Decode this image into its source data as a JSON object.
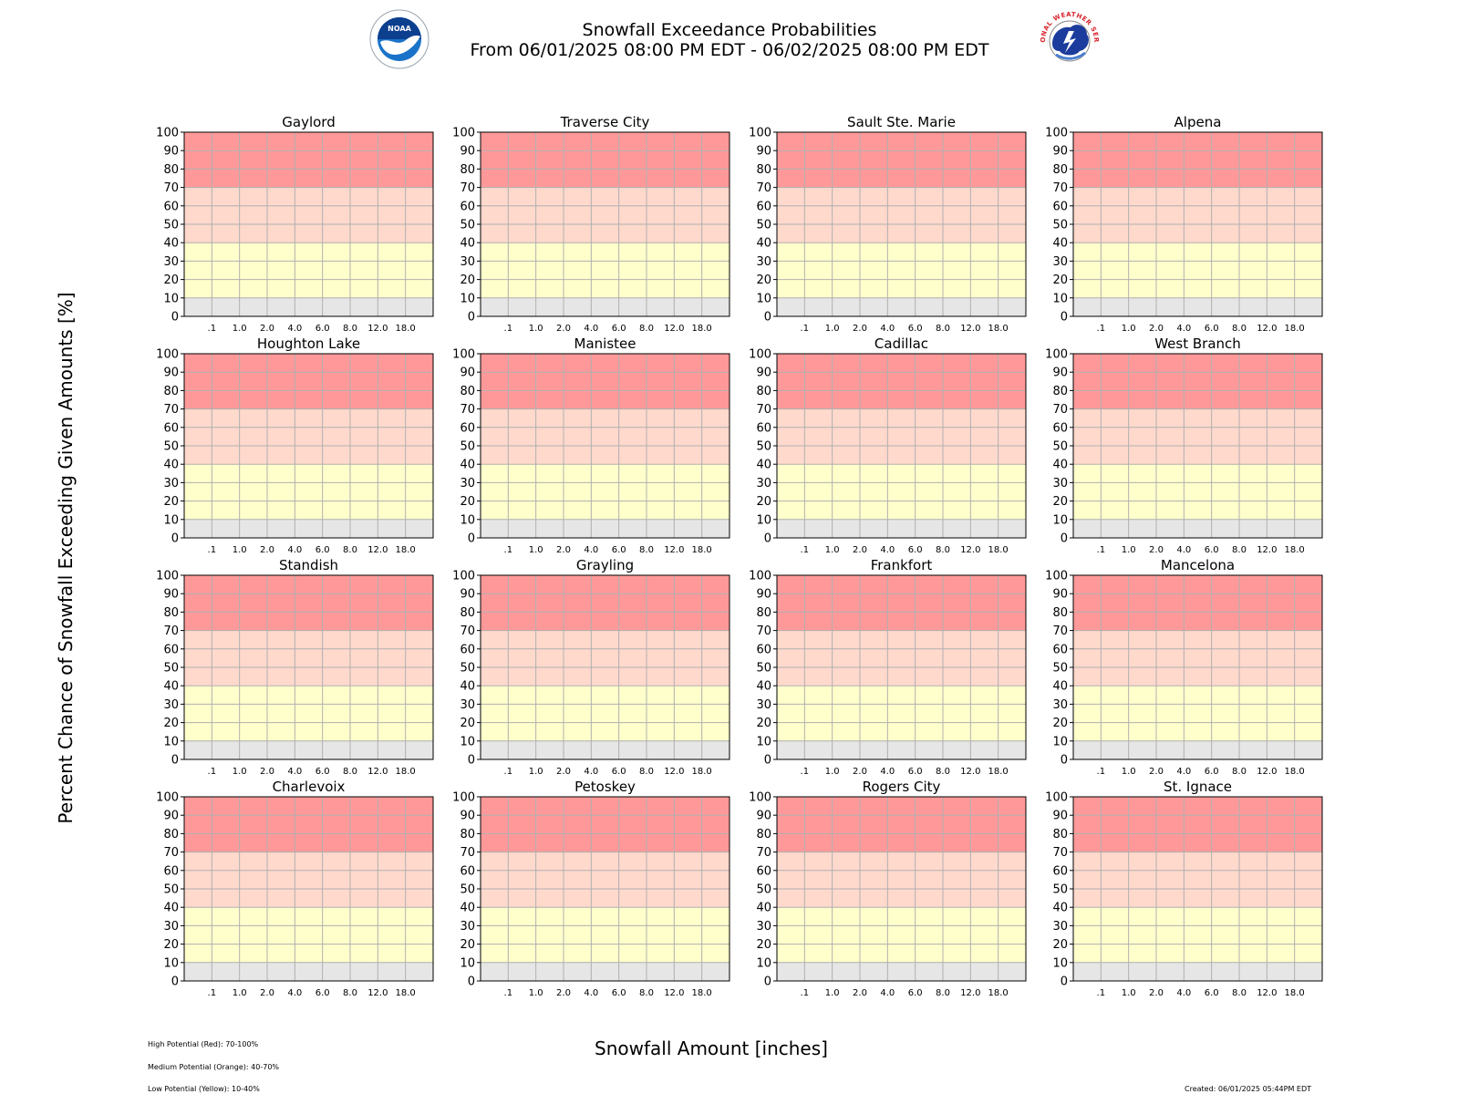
{
  "header": {
    "title": "Snowfall Exceedance Probabilities",
    "subtitle": "From 06/01/2025 08:00 PM EDT - 06/02/2025 08:00 PM EDT",
    "noaa_logo_text": "NOAA",
    "nws_logo_text": "NATIONAL WEATHER SERVICE"
  },
  "footer": {
    "legend_high": "High Potential (Red): 70-100%",
    "legend_medium": "Medium Potential (Orange): 40-70%",
    "legend_low": "Low Potential (Yellow): 10-40%",
    "created": "Created: 06/01/2025 05:44PM EDT"
  },
  "colors": {
    "high": "#ff9999",
    "medium": "#ffd9cc",
    "low": "#ffffcc",
    "minimal": "#e6e6e6",
    "grid": "#b0b0b0",
    "noaa_blue": "#1a73c9",
    "nws_red": "#d8232a"
  },
  "chart_data": {
    "type": "line",
    "xlabel": "Snowfall Amount [inches]",
    "ylabel": "Percent Chance of Snowfall Exceeding Given Amounts [%]",
    "ylim": [
      0,
      100
    ],
    "yticks": [
      "0",
      "10",
      "20",
      "30",
      "40",
      "50",
      "60",
      "70",
      "80",
      "90",
      "100"
    ],
    "xticks": [
      ".1",
      "1.0",
      "2.0",
      "4.0",
      "6.0",
      "8.0",
      "12.0",
      "18.0"
    ],
    "grid": true,
    "bands": [
      {
        "from": 70,
        "to": 100,
        "color": "#ff9999"
      },
      {
        "from": 40,
        "to": 70,
        "color": "#ffd9cc"
      },
      {
        "from": 10,
        "to": 40,
        "color": "#ffffcc"
      },
      {
        "from": 0,
        "to": 10,
        "color": "#e6e6e6"
      }
    ],
    "panels": [
      {
        "title": "Gaylord",
        "values": []
      },
      {
        "title": "Traverse City",
        "values": []
      },
      {
        "title": "Sault Ste. Marie",
        "values": []
      },
      {
        "title": "Alpena",
        "values": []
      },
      {
        "title": "Houghton Lake",
        "values": []
      },
      {
        "title": "Manistee",
        "values": []
      },
      {
        "title": "Cadillac",
        "values": []
      },
      {
        "title": "West Branch",
        "values": []
      },
      {
        "title": "Standish",
        "values": []
      },
      {
        "title": "Grayling",
        "values": []
      },
      {
        "title": "Frankfort",
        "values": []
      },
      {
        "title": "Mancelona",
        "values": []
      },
      {
        "title": "Charlevoix",
        "values": []
      },
      {
        "title": "Petoskey",
        "values": []
      },
      {
        "title": "Rogers City",
        "values": []
      },
      {
        "title": "St. Ignace",
        "values": []
      }
    ]
  }
}
